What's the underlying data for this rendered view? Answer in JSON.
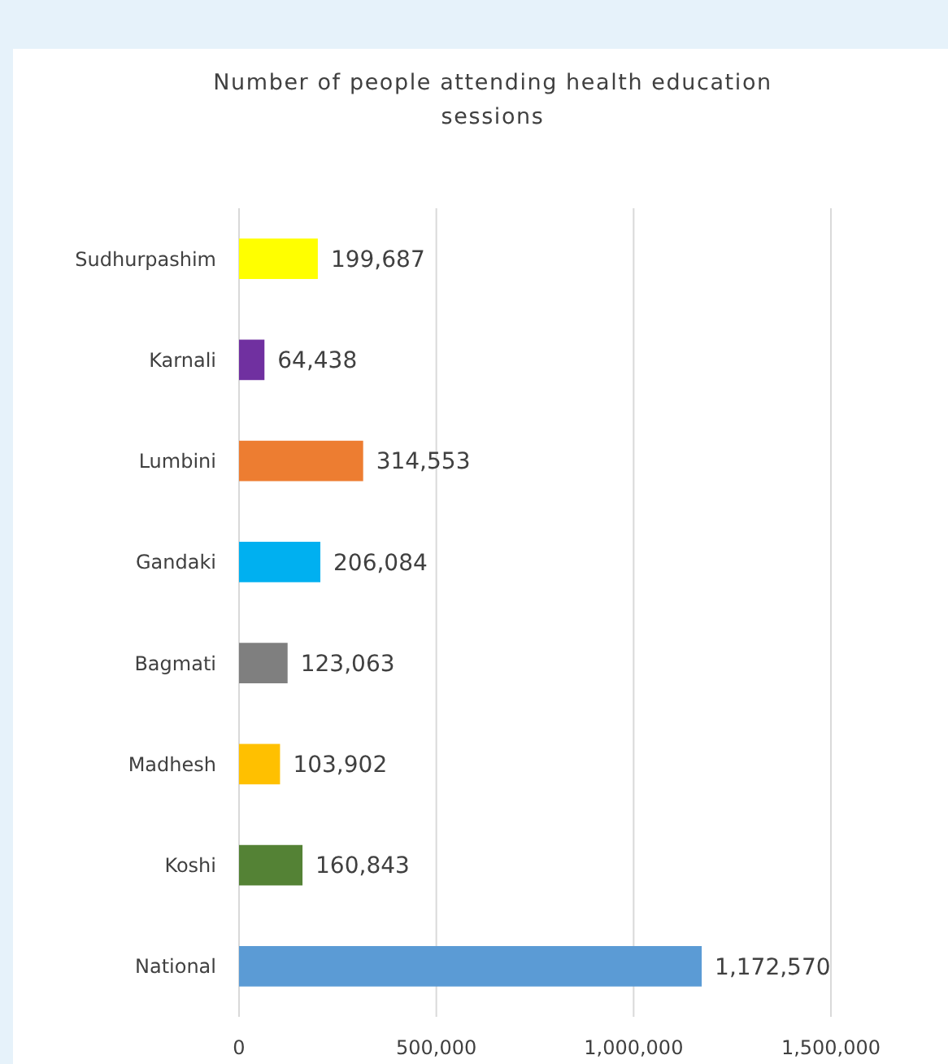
{
  "chart_data": {
    "type": "bar",
    "orientation": "horizontal",
    "title": "Number of people attending health education sessions",
    "categories": [
      "Sudhurpashim",
      "Karnali",
      "Lumbini",
      "Gandaki",
      "Bagmati",
      "Madhesh",
      "Koshi",
      "National"
    ],
    "values": [
      199687,
      64438,
      314553,
      206084,
      123063,
      103902,
      160843,
      1172570
    ],
    "colors": [
      "#ffff00",
      "#7030a0",
      "#ed7d31",
      "#00b0f0",
      "#7f7f7f",
      "#ffc000",
      "#548235",
      "#5b9bd5"
    ],
    "xlim": [
      0,
      1500000
    ],
    "xticks": [
      {
        "value": 0,
        "label": "0"
      },
      {
        "value": 500000,
        "label": "500,000"
      },
      {
        "value": 1000000,
        "label": "1,000,000"
      },
      {
        "value": 1500000,
        "label": "1,500,000"
      }
    ],
    "value_labels": [
      "199,687",
      "64,438",
      "314,553",
      "206,084",
      "123,063",
      "103,902",
      "160,843",
      "1,172,570"
    ],
    "grid": "x"
  }
}
